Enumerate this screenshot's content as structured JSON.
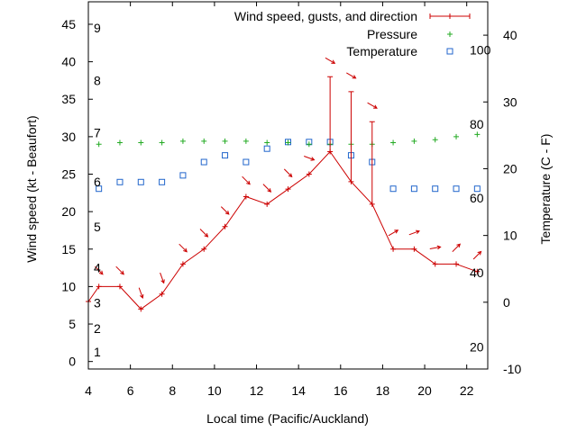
{
  "chart_data": {
    "type": "line",
    "xlabel": "Local time (Pacific/Auckland)",
    "ylabel_left": "Wind speed (kt - Beaufort)",
    "ylabel_right": "Temperature (C - F)",
    "xlim": [
      4,
      23
    ],
    "x_ticks": [
      4,
      6,
      8,
      10,
      12,
      14,
      16,
      18,
      20,
      22
    ],
    "ylim_left": [
      -1,
      48
    ],
    "y_ticks_left": [
      0,
      5,
      10,
      15,
      20,
      25,
      30,
      35,
      40,
      45
    ],
    "ylim_right": [
      -10,
      45
    ],
    "y_ticks_right": [
      -10,
      0,
      10,
      20,
      30,
      40
    ],
    "beaufort_labels": [
      {
        "label": "1",
        "wind": 1.3
      },
      {
        "label": "2",
        "wind": 4.4
      },
      {
        "label": "3",
        "wind": 7.8
      },
      {
        "label": "4",
        "wind": 12.5
      },
      {
        "label": "5",
        "wind": 18.0
      },
      {
        "label": "6",
        "wind": 24.0
      },
      {
        "label": "7",
        "wind": 30.5
      },
      {
        "label": "8",
        "wind": 37.5
      },
      {
        "label": "9",
        "wind": 44.5
      }
    ],
    "fahrenheit_labels": [
      {
        "label": "20",
        "temp_c": -6.7
      },
      {
        "label": "40",
        "temp_c": 4.4
      },
      {
        "label": "60",
        "temp_c": 15.6
      },
      {
        "label": "80",
        "temp_c": 26.7
      },
      {
        "label": "100",
        "temp_c": 37.8
      }
    ],
    "legend": {
      "position": "top-right",
      "entries": [
        "Wind speed, gusts, and direction",
        "Pressure",
        "Temperature"
      ]
    },
    "colors": {
      "wind": "#cc0000",
      "pressure": "#22aa22",
      "temperature": "#2266cc"
    },
    "series": [
      {
        "name": "Wind speed, gusts, and direction",
        "points": [
          {
            "x": 4.0,
            "y": 8,
            "dir": 315
          },
          {
            "x": 4.5,
            "y": 10,
            "dir": 315
          },
          {
            "x": 5.5,
            "y": 10,
            "dir": 315
          },
          {
            "x": 6.5,
            "y": 7,
            "dir": 340
          },
          {
            "x": 7.5,
            "y": 9,
            "dir": 340
          },
          {
            "x": 8.5,
            "y": 13,
            "dir": 315
          },
          {
            "x": 9.5,
            "y": 15,
            "dir": 315
          },
          {
            "x": 10.5,
            "y": 18,
            "dir": 315
          },
          {
            "x": 11.5,
            "y": 22,
            "dir": 315
          },
          {
            "x": 12.5,
            "y": 21,
            "dir": 315
          },
          {
            "x": 13.5,
            "y": 23,
            "dir": 315
          },
          {
            "x": 14.5,
            "y": 25,
            "dir": 290
          },
          {
            "x": 15.5,
            "y": 28,
            "gust": 38,
            "dir": 300
          },
          {
            "x": 16.5,
            "y": 24,
            "gust": 36,
            "dir": 300
          },
          {
            "x": 17.5,
            "y": 21,
            "gust": 32,
            "dir": 300
          },
          {
            "x": 18.5,
            "y": 15,
            "dir": 240
          },
          {
            "x": 19.5,
            "y": 15,
            "dir": 250
          },
          {
            "x": 20.5,
            "y": 13,
            "dir": 260
          },
          {
            "x": 21.5,
            "y": 13,
            "dir": 225
          },
          {
            "x": 22.5,
            "y": 12,
            "dir": 225
          }
        ]
      },
      {
        "name": "Pressure",
        "points": [
          {
            "x": 4.5,
            "y": 29.0
          },
          {
            "x": 5.5,
            "y": 29.2
          },
          {
            "x": 6.5,
            "y": 29.2
          },
          {
            "x": 7.5,
            "y": 29.2
          },
          {
            "x": 8.5,
            "y": 29.4
          },
          {
            "x": 9.5,
            "y": 29.4
          },
          {
            "x": 10.5,
            "y": 29.4
          },
          {
            "x": 11.5,
            "y": 29.4
          },
          {
            "x": 12.5,
            "y": 29.2
          },
          {
            "x": 13.5,
            "y": 29.2
          },
          {
            "x": 14.5,
            "y": 29.0
          },
          {
            "x": 15.5,
            "y": 29.0
          },
          {
            "x": 16.5,
            "y": 29.0
          },
          {
            "x": 17.5,
            "y": 29.0
          },
          {
            "x": 18.5,
            "y": 29.2
          },
          {
            "x": 19.5,
            "y": 29.4
          },
          {
            "x": 20.5,
            "y": 29.6
          },
          {
            "x": 21.5,
            "y": 30.0
          },
          {
            "x": 22.5,
            "y": 30.3
          }
        ]
      },
      {
        "name": "Temperature",
        "points": [
          {
            "x": 4.5,
            "y": 17.0
          },
          {
            "x": 5.5,
            "y": 18.0
          },
          {
            "x": 6.5,
            "y": 18.0
          },
          {
            "x": 7.5,
            "y": 18.0
          },
          {
            "x": 8.5,
            "y": 19.0
          },
          {
            "x": 9.5,
            "y": 21.0
          },
          {
            "x": 10.5,
            "y": 22.0
          },
          {
            "x": 11.5,
            "y": 21.0
          },
          {
            "x": 12.5,
            "y": 23.0
          },
          {
            "x": 13.5,
            "y": 24.0
          },
          {
            "x": 14.5,
            "y": 24.0
          },
          {
            "x": 15.5,
            "y": 24.0
          },
          {
            "x": 16.5,
            "y": 22.0
          },
          {
            "x": 17.5,
            "y": 21.0
          },
          {
            "x": 18.5,
            "y": 17.0
          },
          {
            "x": 19.5,
            "y": 17.0
          },
          {
            "x": 20.5,
            "y": 17.0
          },
          {
            "x": 21.5,
            "y": 17.0
          },
          {
            "x": 22.5,
            "y": 17.0
          }
        ]
      }
    ]
  }
}
